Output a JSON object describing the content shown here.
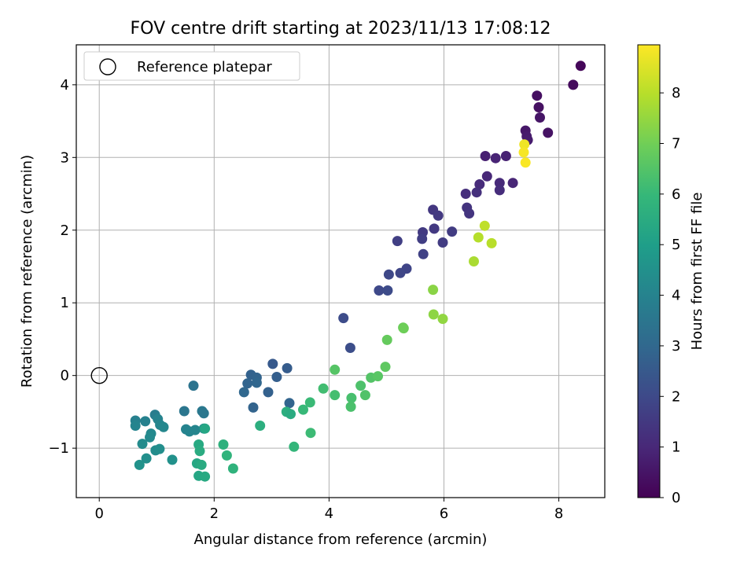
{
  "chart_data": {
    "type": "scatter",
    "title": "FOV centre drift starting at 2023/11/13 17:08:12",
    "xlabel": "Angular distance from reference (arcmin)",
    "ylabel": "Rotation from reference (arcmin)",
    "xlim": [
      -0.4,
      8.8
    ],
    "ylim": [
      -1.68,
      4.55
    ],
    "xticks": [
      0,
      2,
      4,
      6,
      8
    ],
    "yticks": [
      -1,
      0,
      1,
      2,
      3,
      4
    ],
    "xtick_labels": [
      "0",
      "2",
      "4",
      "6",
      "8"
    ],
    "ytick_labels": [
      "−1",
      "0",
      "1",
      "2",
      "3",
      "4"
    ],
    "grid": true,
    "legend": {
      "position": "top-left",
      "entries": [
        {
          "label": "Reference platepar",
          "marker": "open-circle",
          "x": 0,
          "y": 0
        }
      ]
    },
    "colorbar": {
      "label": "Hours from first FF file",
      "colormap": "viridis",
      "range": [
        0,
        8.95
      ],
      "ticks": [
        0,
        1,
        2,
        3,
        4,
        5,
        6,
        7,
        8
      ],
      "tick_labels": [
        "0",
        "1",
        "2",
        "3",
        "4",
        "5",
        "6",
        "7",
        "8"
      ]
    },
    "series": [
      {
        "points": [
          [
            8.38,
            4.26,
            0.15
          ],
          [
            8.25,
            4.0,
            0.25
          ],
          [
            7.62,
            3.85,
            0.35
          ],
          [
            7.65,
            3.69,
            0.4
          ],
          [
            7.67,
            3.55,
            0.5
          ],
          [
            7.42,
            3.37,
            0.55
          ],
          [
            7.44,
            3.29,
            0.65
          ],
          [
            7.46,
            3.24,
            0.7
          ],
          [
            7.81,
            3.34,
            0.45
          ],
          [
            6.72,
            3.02,
            0.8
          ],
          [
            6.9,
            2.99,
            0.9
          ],
          [
            7.08,
            3.02,
            0.85
          ],
          [
            6.75,
            2.74,
            1.0
          ],
          [
            6.62,
            2.63,
            1.1
          ],
          [
            6.97,
            2.65,
            1.05
          ],
          [
            7.2,
            2.65,
            0.95
          ],
          [
            6.97,
            2.55,
            1.15
          ],
          [
            6.38,
            2.5,
            1.2
          ],
          [
            6.57,
            2.52,
            1.25
          ],
          [
            6.4,
            2.31,
            1.35
          ],
          [
            6.44,
            2.23,
            1.4
          ],
          [
            5.81,
            2.28,
            1.45
          ],
          [
            5.9,
            2.2,
            1.5
          ],
          [
            5.63,
            1.97,
            1.55
          ],
          [
            5.83,
            2.02,
            1.5
          ],
          [
            6.14,
            1.98,
            1.6
          ],
          [
            5.62,
            1.88,
            1.65
          ],
          [
            5.98,
            1.83,
            1.6
          ],
          [
            5.19,
            1.85,
            1.7
          ],
          [
            5.64,
            1.67,
            1.75
          ],
          [
            5.35,
            1.47,
            1.85
          ],
          [
            5.24,
            1.41,
            1.9
          ],
          [
            5.04,
            1.39,
            1.95
          ],
          [
            4.87,
            1.17,
            2.0
          ],
          [
            5.02,
            1.17,
            2.05
          ],
          [
            4.25,
            0.79,
            2.1
          ],
          [
            4.37,
            0.38,
            2.15
          ],
          [
            3.02,
            0.16,
            2.5
          ],
          [
            3.27,
            0.1,
            2.6
          ],
          [
            2.64,
            0.01,
            2.8
          ],
          [
            2.74,
            -0.03,
            2.85
          ],
          [
            2.58,
            -0.11,
            2.9
          ],
          [
            2.74,
            -0.1,
            2.95
          ],
          [
            3.09,
            -0.02,
            2.7
          ],
          [
            2.52,
            -0.23,
            3.0
          ],
          [
            2.94,
            -0.23,
            2.75
          ],
          [
            2.68,
            -0.44,
            2.85
          ],
          [
            3.31,
            -0.38,
            2.9
          ],
          [
            1.64,
            -0.14,
            3.4
          ],
          [
            1.48,
            -0.49,
            3.5
          ],
          [
            1.79,
            -0.49,
            3.6
          ],
          [
            1.82,
            -0.52,
            3.55
          ],
          [
            0.97,
            -0.54,
            3.8
          ],
          [
            0.63,
            -0.62,
            3.9
          ],
          [
            0.8,
            -0.63,
            3.95
          ],
          [
            1.02,
            -0.6,
            4.0
          ],
          [
            0.63,
            -0.69,
            4.05
          ],
          [
            1.06,
            -0.68,
            4.1
          ],
          [
            1.12,
            -0.71,
            4.15
          ],
          [
            1.51,
            -0.74,
            4.0
          ],
          [
            1.57,
            -0.77,
            4.05
          ],
          [
            1.67,
            -0.75,
            4.1
          ],
          [
            1.82,
            -0.73,
            4.3
          ],
          [
            0.9,
            -0.8,
            4.2
          ],
          [
            0.88,
            -0.85,
            4.25
          ],
          [
            0.75,
            -0.94,
            4.3
          ],
          [
            0.98,
            -1.03,
            4.35
          ],
          [
            1.05,
            -1.01,
            4.4
          ],
          [
            0.82,
            -1.14,
            4.45
          ],
          [
            1.27,
            -1.16,
            4.5
          ],
          [
            0.7,
            -1.23,
            4.55
          ],
          [
            1.84,
            -0.73,
            5.3
          ],
          [
            3.26,
            -0.5,
            5.6
          ],
          [
            3.33,
            -0.53,
            5.5
          ],
          [
            2.8,
            -0.69,
            5.6
          ],
          [
            1.73,
            -0.95,
            5.4
          ],
          [
            1.75,
            -1.04,
            5.5
          ],
          [
            1.7,
            -1.21,
            5.35
          ],
          [
            1.78,
            -1.23,
            5.45
          ],
          [
            1.73,
            -1.38,
            5.3
          ],
          [
            1.84,
            -1.39,
            5.4
          ],
          [
            2.16,
            -0.95,
            5.7
          ],
          [
            2.22,
            -1.1,
            5.8
          ],
          [
            2.33,
            -1.28,
            5.75
          ],
          [
            3.39,
            -0.98,
            5.9
          ],
          [
            3.55,
            -0.47,
            6.0
          ],
          [
            3.67,
            -0.37,
            6.05
          ],
          [
            3.68,
            -0.79,
            6.1
          ],
          [
            3.9,
            -0.18,
            6.2
          ],
          [
            4.1,
            -0.27,
            6.25
          ],
          [
            4.39,
            -0.31,
            6.3
          ],
          [
            4.38,
            -0.43,
            6.35
          ],
          [
            4.55,
            -0.14,
            6.4
          ],
          [
            4.63,
            -0.27,
            6.45
          ],
          [
            4.73,
            -0.03,
            6.5
          ],
          [
            4.85,
            -0.01,
            6.6
          ],
          [
            4.1,
            0.08,
            6.55
          ],
          [
            4.98,
            0.12,
            6.7
          ],
          [
            5.01,
            0.49,
            6.8
          ],
          [
            5.29,
            0.66,
            6.9
          ],
          [
            5.3,
            0.65,
            6.95
          ],
          [
            5.81,
            1.18,
            7.35
          ],
          [
            5.82,
            0.84,
            7.4
          ],
          [
            5.98,
            0.78,
            7.45
          ],
          [
            6.52,
            1.57,
            7.8
          ],
          [
            6.6,
            1.9,
            7.95
          ],
          [
            6.71,
            2.06,
            8.1
          ],
          [
            6.83,
            1.82,
            8.0
          ],
          [
            7.4,
            3.18,
            8.75
          ],
          [
            7.39,
            3.07,
            8.85
          ],
          [
            7.42,
            2.93,
            8.9
          ]
        ]
      }
    ]
  }
}
